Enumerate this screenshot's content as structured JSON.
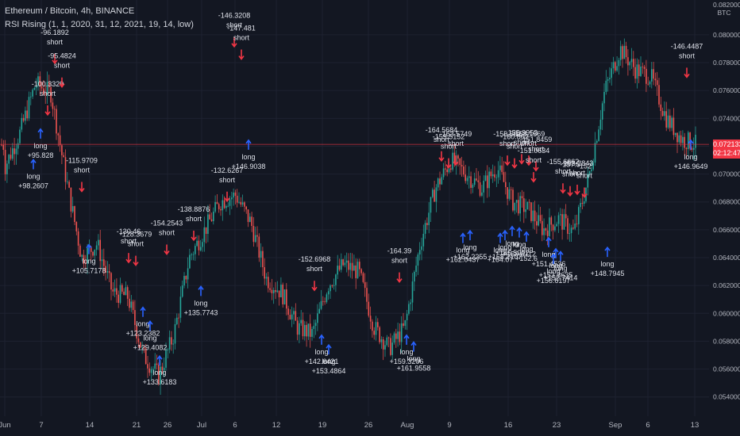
{
  "header": {
    "symbol_line": "Ethereum / Bitcoin, 4h, BINANCE",
    "indicator_line": "RSI Rising (1, 1, 2020, 31, 12, 2021, 19, 14, low)"
  },
  "currency_badge": "BTC",
  "top_tick_partial": "0.082000",
  "last_price": {
    "value": "0.072133",
    "countdown": "02:12:47"
  },
  "colors": {
    "background": "#131722",
    "up": "#26a69a",
    "down": "#ef5350",
    "long": "#2962ff",
    "short": "#f23645",
    "text": "#d1d4dc",
    "price_line": "#f23645"
  },
  "chart_data": {
    "type": "candlestick",
    "title": "Ethereum / Bitcoin, 4h, BINANCE",
    "y_axis": {
      "side": "right",
      "ylim": [
        0.0532,
        0.0822
      ],
      "ticks": [
        "0.080000",
        "0.078000",
        "0.076000",
        "0.074000",
        "0.072000",
        "0.070000",
        "0.068000",
        "0.066000",
        "0.064000",
        "0.062000",
        "0.060000",
        "0.058000",
        "0.056000",
        "0.054000"
      ]
    },
    "x_axis": {
      "ticks": [
        "Jun",
        "7",
        "14",
        "21",
        "26",
        "Jul",
        "6",
        "12",
        "19",
        "26",
        "Aug",
        "9",
        "16",
        "23",
        "Sep",
        "6",
        "13"
      ]
    },
    "price_path": [
      [
        "Jun",
        0.0705
      ],
      [
        "7",
        0.073
      ],
      [
        "7",
        0.0765
      ],
      [
        "7",
        0.0758
      ],
      [
        "14",
        0.0696
      ],
      [
        "14",
        0.064
      ],
      [
        "14",
        0.065
      ],
      [
        "21",
        0.0615
      ],
      [
        "21",
        0.0612
      ],
      [
        "26",
        0.057
      ],
      [
        "26",
        0.0555
      ],
      [
        "26",
        0.0585
      ],
      [
        "Jul",
        0.064
      ],
      [
        "6",
        0.066
      ],
      [
        "6",
        0.068
      ],
      [
        "6",
        0.0685
      ],
      [
        "6",
        0.0665
      ],
      [
        "12",
        0.0625
      ],
      [
        "12",
        0.0615
      ],
      [
        "19",
        0.059
      ],
      [
        "19",
        0.0585
      ],
      [
        "19",
        0.062
      ],
      [
        "26",
        0.0635
      ],
      [
        "26",
        0.063
      ],
      [
        "26",
        0.059
      ],
      [
        "Aug",
        0.0575
      ],
      [
        "Aug",
        0.059
      ],
      [
        "Aug",
        0.065
      ],
      [
        "9",
        0.069
      ],
      [
        "9",
        0.071
      ],
      [
        "9",
        0.07
      ],
      [
        "16",
        0.069
      ],
      [
        "16",
        0.0705
      ],
      [
        "16",
        0.068
      ],
      [
        "23",
        0.0675
      ],
      [
        "23",
        0.066
      ],
      [
        "23",
        0.0668
      ],
      [
        "Sep",
        0.0658
      ],
      [
        "Sep",
        0.07
      ],
      [
        "Sep",
        0.076
      ],
      [
        "6",
        0.079
      ],
      [
        "6",
        0.0775
      ],
      [
        "6",
        0.077
      ],
      [
        "13",
        0.074
      ],
      [
        "13",
        0.0725
      ],
      [
        "13",
        0.0721
      ]
    ],
    "signals": [
      {
        "type": "long",
        "label": [
          "long",
          "+98.2607"
        ],
        "x": "7",
        "y": 0.0716
      },
      {
        "type": "long",
        "label": [
          "long",
          "+95.828"
        ],
        "x": "7",
        "y": 0.0738
      },
      {
        "type": "short",
        "label": [
          "-100.3329",
          "short"
        ],
        "x": "7",
        "y": 0.0738
      },
      {
        "type": "short",
        "label": [
          "-96.1892",
          "short"
        ],
        "x": "7",
        "y": 0.0775
      },
      {
        "type": "short",
        "label": [
          "-95.4824",
          "short"
        ],
        "x": "7",
        "y": 0.0758
      },
      {
        "type": "short",
        "label": [
          "-115.9709",
          "short"
        ],
        "x": "14",
        "y": 0.0683
      },
      {
        "type": "long",
        "label": [
          "long",
          "+105.7178"
        ],
        "x": "14",
        "y": 0.0655
      },
      {
        "type": "short",
        "label": [
          "-130.46",
          "short"
        ],
        "x": "21",
        "y": 0.0632
      },
      {
        "type": "short",
        "label": [
          "-128.3679",
          "short"
        ],
        "x": "21",
        "y": 0.063
      },
      {
        "type": "long",
        "label": [
          "long",
          "+123.2382"
        ],
        "x": "21",
        "y": 0.061
      },
      {
        "type": "long",
        "label": [
          "long",
          "+129.4082"
        ],
        "x": "21",
        "y": 0.06
      },
      {
        "type": "long",
        "label": [
          "long",
          "+133.6183"
        ],
        "x": "26",
        "y": 0.0575
      },
      {
        "type": "short",
        "label": [
          "-138.8876",
          "short"
        ],
        "x": "Jul",
        "y": 0.0648
      },
      {
        "type": "long",
        "label": [
          "long",
          "+135.7743"
        ],
        "x": "Jul",
        "y": 0.0625
      },
      {
        "type": "short",
        "label": [
          "-132.6267",
          "short"
        ],
        "x": "6",
        "y": 0.0676
      },
      {
        "type": "short",
        "label": [
          "-152.6968",
          "short"
        ],
        "x": "19",
        "y": 0.0612
      },
      {
        "type": "long",
        "label": [
          "long",
          "+142.6421"
        ],
        "x": "19",
        "y": 0.059
      },
      {
        "type": "long",
        "label": [
          "long",
          "+153.4864"
        ],
        "x": "19",
        "y": 0.0583
      },
      {
        "type": "short",
        "label": [
          "-154.2543",
          "short"
        ],
        "x": "26",
        "y": 0.0638
      },
      {
        "type": "short",
        "label": [
          "-164.39",
          "short"
        ],
        "x": "Aug",
        "y": 0.0618
      },
      {
        "type": "long",
        "label": [
          "long",
          "+159.3206"
        ],
        "x": "Aug",
        "y": 0.059
      },
      {
        "type": "long",
        "label": [
          "long",
          "+161.9558"
        ],
        "x": "Aug",
        "y": 0.0585
      },
      {
        "type": "short",
        "label": [
          "-164.5684",
          "short"
        ],
        "x": "9",
        "y": 0.0705
      },
      {
        "type": "short",
        "label": [
          "-159.5152",
          "short"
        ],
        "x": "9",
        "y": 0.07
      },
      {
        "type": "short",
        "label": [
          "-163.5749",
          "short"
        ],
        "x": "9",
        "y": 0.0702
      },
      {
        "type": "long",
        "label": [
          "long",
          "+162.0437"
        ],
        "x": "9",
        "y": 0.0663
      },
      {
        "type": "long",
        "label": [
          "long",
          "+162.2255"
        ],
        "x": "9",
        "y": 0.0665
      },
      {
        "type": "long",
        "label": [
          "long",
          "+164.07"
        ],
        "x": "16",
        "y": 0.0663
      },
      {
        "type": "short",
        "label": [
          "-155.592",
          "short"
        ],
        "x": "16",
        "y": 0.0702
      },
      {
        "type": "short",
        "label": [
          "-160.862",
          "short"
        ],
        "x": "16",
        "y": 0.07
      },
      {
        "type": "short",
        "label": [
          "-155.9953",
          "short"
        ],
        "x": "16",
        "y": 0.0703
      },
      {
        "type": "short",
        "label": [
          "-158.1569",
          "short"
        ],
        "x": "16",
        "y": 0.0702
      },
      {
        "type": "short",
        "label": [
          "-151.8459",
          "short"
        ],
        "x": "16",
        "y": 0.0698
      },
      {
        "type": "long",
        "label": [
          "long",
          "+158.2107"
        ],
        "x": "16",
        "y": 0.0665
      },
      {
        "type": "long",
        "label": [
          "long",
          "+155.5992"
        ],
        "x": "16",
        "y": 0.0668
      },
      {
        "type": "long",
        "label": [
          "long",
          "+159.6112"
        ],
        "x": "16",
        "y": 0.0667
      },
      {
        "type": "long",
        "label": [
          "long",
          "+152.6"
        ],
        "x": "16",
        "y": 0.0664
      },
      {
        "type": "short",
        "label": [
          "-151.0634",
          "short"
        ],
        "x": "16",
        "y": 0.069
      },
      {
        "type": "long",
        "label": [
          "long",
          "+151.4536"
        ],
        "x": "23",
        "y": 0.066
      },
      {
        "type": "long",
        "label": [
          "long",
          "+153.3635"
        ],
        "x": "23",
        "y": 0.0652
      },
      {
        "type": "short",
        "label": [
          "-155.6662",
          "short"
        ],
        "x": "23",
        "y": 0.0682
      },
      {
        "type": "short",
        "label": [
          "-157.5",
          "short"
        ],
        "x": "23",
        "y": 0.068
      },
      {
        "type": "short",
        "label": [
          "-153.2843",
          "short"
        ],
        "x": "23",
        "y": 0.0681
      },
      {
        "type": "short",
        "label": [
          "-152",
          "short"
        ],
        "x": "23",
        "y": 0.0679
      },
      {
        "type": "long",
        "label": [
          "long",
          "+156.6197"
        ],
        "x": "23",
        "y": 0.0648
      },
      {
        "type": "long",
        "label": [
          "long",
          "+152.7414"
        ],
        "x": "23",
        "y": 0.065
      },
      {
        "type": "long",
        "label": [
          "long",
          "+148.7945"
        ],
        "x": "Sep",
        "y": 0.0653
      },
      {
        "type": "short",
        "label": [
          "-146.3208",
          "short"
        ],
        "x": "6",
        "y": 0.0787
      },
      {
        "type": "short",
        "label": [
          "-147.481",
          "short"
        ],
        "x": "6",
        "y": 0.0778
      },
      {
        "type": "long",
        "label": [
          "long",
          "+146.9038"
        ],
        "x": "6",
        "y": 0.073
      },
      {
        "type": "short",
        "label": [
          "-146.4487",
          "short"
        ],
        "x": "13",
        "y": 0.0765
      },
      {
        "type": "long",
        "label": [
          "long",
          "+146.9649"
        ],
        "x": "13",
        "y": 0.073
      }
    ],
    "grid": true,
    "legend": "top-left"
  }
}
